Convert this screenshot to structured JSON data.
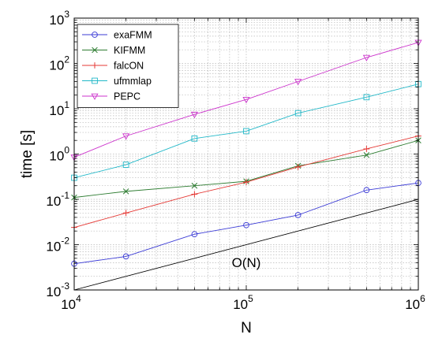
{
  "chart_data": {
    "type": "line",
    "xscale": "log",
    "yscale": "log",
    "xlim": [
      10000,
      1000000
    ],
    "ylim": [
      0.001,
      1000
    ],
    "xlabel": "N",
    "ylabel": "time [s]",
    "xticks": [
      {
        "value": 10000,
        "base": "10",
        "exp": "4"
      },
      {
        "value": 100000,
        "base": "10",
        "exp": "5"
      },
      {
        "value": 1000000,
        "base": "10",
        "exp": "6"
      }
    ],
    "yticks": [
      {
        "value": 0.001,
        "base": "10",
        "exp": "-3"
      },
      {
        "value": 0.01,
        "base": "10",
        "exp": "-2"
      },
      {
        "value": 0.1,
        "base": "10",
        "exp": "-1"
      },
      {
        "value": 1,
        "base": "10",
        "exp": "0"
      },
      {
        "value": 10,
        "base": "10",
        "exp": "1"
      },
      {
        "value": 100,
        "base": "10",
        "exp": "2"
      },
      {
        "value": 1000,
        "base": "10",
        "exp": "3"
      }
    ],
    "grid": true,
    "legend_position": "top-left",
    "x": [
      10000,
      20000,
      50000,
      100000,
      200000,
      500000,
      1000000
    ],
    "series": [
      {
        "name": "exaFMM",
        "color": "#3b3bd6",
        "marker": "circle",
        "values": [
          0.0038,
          0.0055,
          0.017,
          0.027,
          0.045,
          0.16,
          0.23
        ]
      },
      {
        "name": "KIFMM",
        "color": "#2e7d32",
        "marker": "x",
        "values": [
          0.11,
          0.15,
          0.2,
          0.25,
          0.55,
          0.95,
          2.0
        ]
      },
      {
        "name": "falcON",
        "color": "#e53935",
        "marker": "plus",
        "values": [
          0.024,
          0.05,
          0.13,
          0.24,
          0.52,
          1.3,
          2.5
        ]
      },
      {
        "name": "ufmmlap",
        "color": "#22b8c8",
        "marker": "square",
        "values": [
          0.3,
          0.58,
          2.2,
          3.2,
          8.0,
          18,
          35
        ]
      },
      {
        "name": "PEPC",
        "color": "#cc33cc",
        "marker": "triangle-down",
        "values": [
          0.85,
          2.5,
          7.5,
          16,
          40,
          135,
          290
        ]
      }
    ],
    "reference": {
      "label": "O(N)",
      "color": "#000000",
      "x": [
        10000,
        1000000
      ],
      "values": [
        0.001,
        0.1
      ]
    }
  }
}
